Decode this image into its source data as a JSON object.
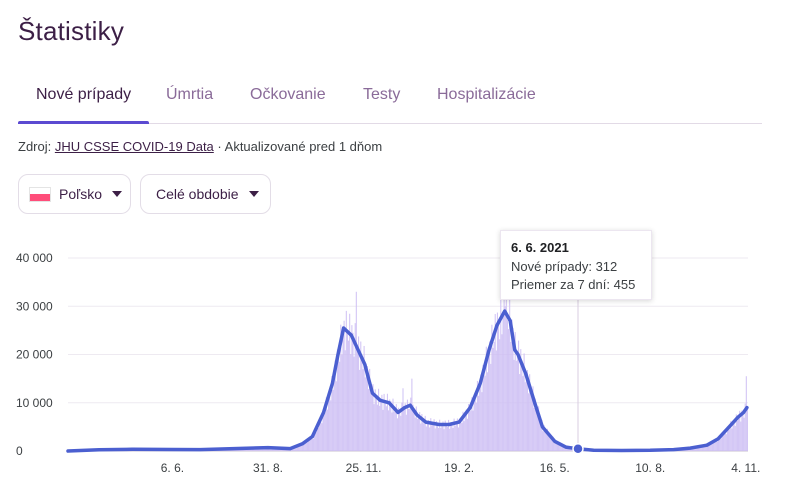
{
  "page": {
    "title": "Štatistiky"
  },
  "tabs": [
    {
      "label": "Nové prípady",
      "active": true
    },
    {
      "label": "Úmrtia"
    },
    {
      "label": "Očkovanie"
    },
    {
      "label": "Testy"
    },
    {
      "label": "Hospitalizácie"
    }
  ],
  "source": {
    "prefix": "Zdroj:",
    "link": "JHU CSSE COVID-19 Data",
    "updated": "· Aktualizované pred 1 dňom"
  },
  "filters": {
    "country": {
      "label": "Poľsko",
      "flag": "poland-flag-icon"
    },
    "period": {
      "label": "Celé obdobie"
    }
  },
  "tooltip": {
    "date": "6. 6. 2021",
    "rows": [
      {
        "label": "Nové prípady",
        "value": "312"
      },
      {
        "label": "Priemer za 7 dní",
        "value": "455"
      }
    ]
  },
  "colors": {
    "line": "#4b5fd0",
    "bars": "#cbbcf3",
    "accent": "#5b4ad1",
    "title": "#3c1f46"
  },
  "chart_data": {
    "type": "area",
    "ylim": [
      0,
      40000
    ],
    "y_ticks": [
      {
        "value": 0,
        "label": "0"
      },
      {
        "value": 10000,
        "label": "10 000"
      },
      {
        "value": 20000,
        "label": "20 000"
      },
      {
        "value": 30000,
        "label": "30 000"
      },
      {
        "value": 40000,
        "label": "40 000"
      }
    ],
    "x_ticks": [
      {
        "date": "2020-06-06",
        "label": "6. 6."
      },
      {
        "date": "2020-08-31",
        "label": "31. 8."
      },
      {
        "date": "2020-11-25",
        "label": "25. 11."
      },
      {
        "date": "2021-02-19",
        "label": "19. 2."
      },
      {
        "date": "2021-05-16",
        "label": "16. 5."
      },
      {
        "date": "2021-08-10",
        "label": "10. 8."
      },
      {
        "date": "2021-11-04",
        "label": "4. 11."
      }
    ],
    "xlim": [
      "2020-03-04",
      "2021-11-06"
    ],
    "series": [
      {
        "name": "Priemer za 7 dní",
        "points": [
          [
            "2020-03-04",
            0
          ],
          [
            "2020-04-01",
            250
          ],
          [
            "2020-05-01",
            350
          ],
          [
            "2020-06-06",
            320
          ],
          [
            "2020-07-01",
            300
          ],
          [
            "2020-07-31",
            500
          ],
          [
            "2020-08-31",
            700
          ],
          [
            "2020-09-20",
            500
          ],
          [
            "2020-10-01",
            1500
          ],
          [
            "2020-10-10",
            3000
          ],
          [
            "2020-10-20",
            8000
          ],
          [
            "2020-10-28",
            14000
          ],
          [
            "2020-11-02",
            20000
          ],
          [
            "2020-11-07",
            25500
          ],
          [
            "2020-11-14",
            24000
          ],
          [
            "2020-11-20",
            21000
          ],
          [
            "2020-11-26",
            18000
          ],
          [
            "2020-12-03",
            12000
          ],
          [
            "2020-12-10",
            10500
          ],
          [
            "2020-12-18",
            10000
          ],
          [
            "2020-12-26",
            8000
          ],
          [
            "2021-01-01",
            9000
          ],
          [
            "2021-01-06",
            9500
          ],
          [
            "2021-01-12",
            7500
          ],
          [
            "2021-01-20",
            6000
          ],
          [
            "2021-02-01",
            5500
          ],
          [
            "2021-02-10",
            5500
          ],
          [
            "2021-02-19",
            6000
          ],
          [
            "2021-03-01",
            9000
          ],
          [
            "2021-03-10",
            14000
          ],
          [
            "2021-03-18",
            21000
          ],
          [
            "2021-03-25",
            26000
          ],
          [
            "2021-04-01",
            29000
          ],
          [
            "2021-04-06",
            27000
          ],
          [
            "2021-04-10",
            21000
          ],
          [
            "2021-04-13",
            20000
          ],
          [
            "2021-04-20",
            16000
          ],
          [
            "2021-04-28",
            10000
          ],
          [
            "2021-05-05",
            5000
          ],
          [
            "2021-05-16",
            2000
          ],
          [
            "2021-05-26",
            800
          ],
          [
            "2021-06-06",
            455
          ],
          [
            "2021-06-20",
            150
          ],
          [
            "2021-07-15",
            100
          ],
          [
            "2021-08-10",
            150
          ],
          [
            "2021-08-31",
            300
          ],
          [
            "2021-09-15",
            600
          ],
          [
            "2021-09-30",
            1200
          ],
          [
            "2021-10-10",
            2500
          ],
          [
            "2021-10-20",
            5000
          ],
          [
            "2021-10-28",
            7000
          ],
          [
            "2021-11-02",
            8000
          ],
          [
            "2021-11-05",
            9000
          ]
        ]
      }
    ],
    "daily_bars": {
      "name": "Nové prípady",
      "spikes": [
        [
          "2020-11-07",
          27000
        ],
        [
          "2020-11-10",
          25000
        ],
        [
          "2020-11-18",
          33000
        ],
        [
          "2020-12-30",
          13000
        ],
        [
          "2021-01-07",
          15000
        ],
        [
          "2021-03-31",
          35000
        ],
        [
          "2021-04-01",
          30000
        ],
        [
          "2021-06-06",
          312
        ],
        [
          "2021-11-04",
          15500
        ]
      ]
    }
  }
}
